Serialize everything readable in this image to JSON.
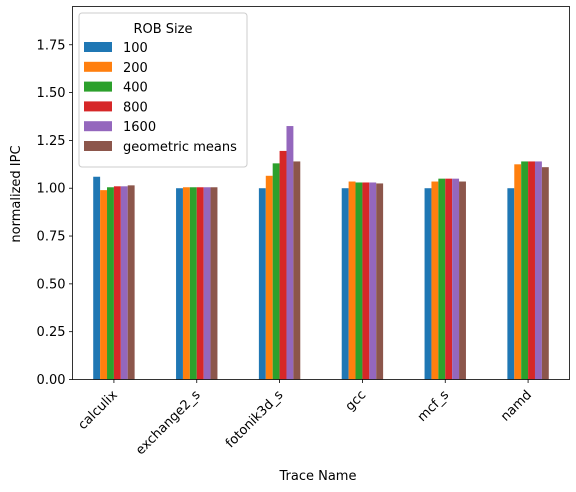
{
  "chart_data": {
    "type": "bar",
    "title": "",
    "xlabel": "Trace Name",
    "ylabel": "normalized IPC",
    "ylim": [
      0,
      1.95
    ],
    "yticks": [
      0.0,
      0.25,
      0.5,
      0.75,
      1.0,
      1.25,
      1.5,
      1.75
    ],
    "ytick_labels": [
      "0.00",
      "0.25",
      "0.50",
      "0.75",
      "1.00",
      "1.25",
      "1.50",
      "1.75"
    ],
    "grid": false,
    "legend": {
      "title": "ROB Size",
      "placement": "top-left"
    },
    "categories": [
      "calculix",
      "exchange2_s",
      "fotonik3d_s",
      "gcc",
      "mcf_s",
      "namd"
    ],
    "series": [
      {
        "name": "100",
        "color": "#1f77b4",
        "values": [
          1.06,
          1.0,
          1.0,
          1.0,
          1.0,
          1.0
        ]
      },
      {
        "name": "200",
        "color": "#ff7f0e",
        "values": [
          0.99,
          1.005,
          1.065,
          1.035,
          1.035,
          1.125
        ]
      },
      {
        "name": "400",
        "color": "#2ca02c",
        "values": [
          1.005,
          1.005,
          1.13,
          1.03,
          1.05,
          1.14
        ]
      },
      {
        "name": "800",
        "color": "#d62728",
        "values": [
          1.01,
          1.005,
          1.195,
          1.03,
          1.05,
          1.14
        ]
      },
      {
        "name": "1600",
        "color": "#9467bd",
        "values": [
          1.01,
          1.005,
          1.325,
          1.03,
          1.05,
          1.14
        ]
      },
      {
        "name": "geometric means",
        "color": "#8c564b",
        "values": [
          1.015,
          1.005,
          1.14,
          1.025,
          1.035,
          1.11
        ]
      }
    ]
  }
}
